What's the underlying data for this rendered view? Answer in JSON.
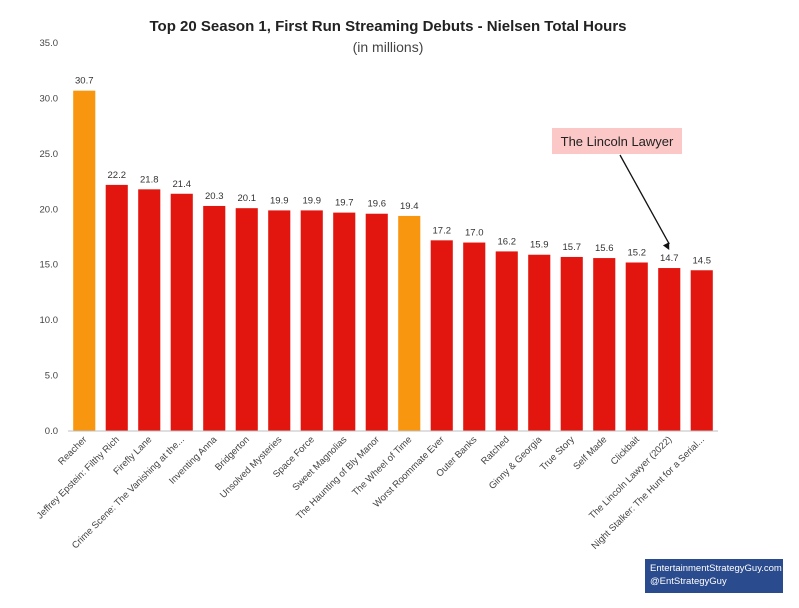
{
  "chart_data": {
    "type": "bar",
    "title": "Top 20 Season 1, First Run Streaming Debuts - Nielsen Total Hours",
    "subtitle": "(in millions)",
    "ylim": [
      0,
      35
    ],
    "yticks": [
      "0.0",
      "5.0",
      "10.0",
      "15.0",
      "20.0",
      "25.0",
      "30.0",
      "35.0"
    ],
    "grid": false,
    "categories": [
      "Reacher",
      "Jeffrey Epstein: Filthy Rich",
      "Firefly Lane",
      "Crime Scene: The Vanishing at the...",
      "Inventing Anna",
      "Bridgerton",
      "Unsolved Mysteries",
      "Space Force",
      "Sweet Magnolias",
      "The Haunting of Bly Manor",
      "The Wheel of Time",
      "Worst Roommate Ever",
      "Outer Banks",
      "Ratched",
      "Ginny & Georgia",
      "True Story",
      "Self Made",
      "Clickbait",
      "The Lincoln Lawyer (2022)",
      "Night Stalker: The Hunt for a Serial..."
    ],
    "values": [
      30.7,
      22.2,
      21.8,
      21.4,
      20.3,
      20.1,
      19.9,
      19.9,
      19.7,
      19.6,
      19.4,
      17.2,
      17.0,
      16.2,
      15.9,
      15.7,
      15.6,
      15.2,
      14.7,
      14.5
    ],
    "value_labels": [
      "30.7",
      "22.2",
      "21.8",
      "21.4",
      "20.3",
      "20.1",
      "19.9",
      "19.9",
      "19.7",
      "19.6",
      "19.4",
      "17.2",
      "17.0",
      "16.2",
      "15.9",
      "15.7",
      "15.6",
      "15.2",
      "14.7",
      "14.5"
    ],
    "highlighted": [
      0,
      10
    ],
    "colors": {
      "bar": "#e3160f",
      "highlight": "#f8960f",
      "axis": "#bfbfbf"
    },
    "annotation": {
      "text": "The Lincoln Lawyer",
      "target_index": 18,
      "box_color": "#fbc7c7"
    }
  },
  "footer": {
    "line1": "EntertainmentStrategyGuy.com",
    "line2": "@EntStrategyGuy",
    "background": "#2a4b8d"
  }
}
